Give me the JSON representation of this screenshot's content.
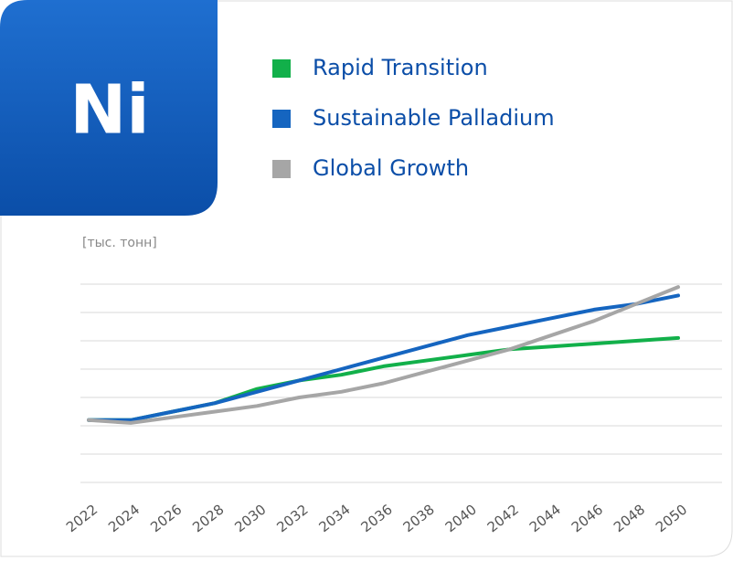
{
  "chart_data": {
    "type": "line",
    "badge": "Ni",
    "unit_label": "[тыс. тонн]",
    "x": [
      2022,
      2024,
      2026,
      2028,
      2030,
      2032,
      2034,
      2036,
      2038,
      2040,
      2042,
      2044,
      2046,
      2048,
      2050
    ],
    "xticks": [
      2022,
      2024,
      2026,
      2028,
      2030,
      2032,
      2034,
      2036,
      2038,
      2040,
      2042,
      2044,
      2046,
      2048,
      2050
    ],
    "xlim": [
      2022,
      2050
    ],
    "ylim": [
      0,
      7
    ],
    "yticks": [
      0,
      1,
      2,
      3,
      4,
      5,
      6,
      7
    ],
    "grid": true,
    "series": [
      {
        "name": "Rapid Transition",
        "color": "#12b04a",
        "values": [
          2.2,
          2.2,
          2.5,
          2.8,
          3.3,
          3.6,
          3.8,
          4.1,
          4.3,
          4.5,
          4.7,
          4.8,
          4.9,
          5.0,
          5.1
        ]
      },
      {
        "name": "Sustainable Palladium",
        "color": "#1565c0",
        "values": [
          2.2,
          2.2,
          2.5,
          2.8,
          3.2,
          3.6,
          4.0,
          4.4,
          4.8,
          5.2,
          5.5,
          5.8,
          6.1,
          6.3,
          6.6
        ]
      },
      {
        "name": "Global Growth",
        "color": "#a6a6a6",
        "values": [
          2.2,
          2.1,
          2.3,
          2.5,
          2.7,
          3.0,
          3.2,
          3.5,
          3.9,
          4.3,
          4.7,
          5.2,
          5.7,
          6.3,
          6.9
        ]
      }
    ]
  }
}
